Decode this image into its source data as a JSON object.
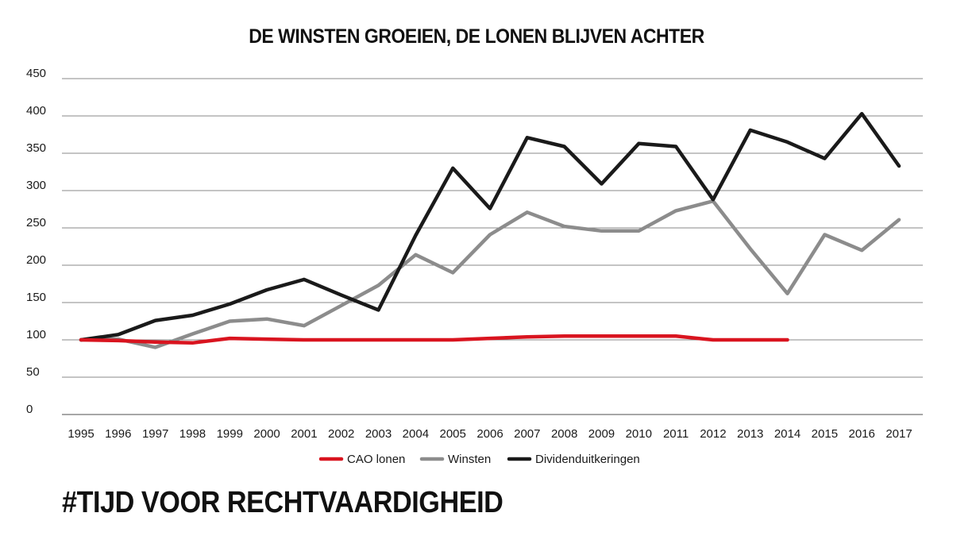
{
  "colors": {
    "cao": "#d9141f",
    "winsten": "#8c8c8c",
    "dividend": "#1a1a1a",
    "grid": "#8a8a8a"
  },
  "chart_data": {
    "type": "line",
    "title": "DE WINSTEN GROEIEN, DE LONEN BLIJVEN ACHTER",
    "xlabel": "",
    "ylabel": "",
    "ylim": [
      0,
      450
    ],
    "yticks": [
      0,
      50,
      100,
      150,
      200,
      250,
      300,
      350,
      400,
      450
    ],
    "grid": true,
    "legend_position": "bottom",
    "x": [
      "1995",
      "1996",
      "1997",
      "1998",
      "1999",
      "2000",
      "2001",
      "2002",
      "2003",
      "2004",
      "2005",
      "2006",
      "2007",
      "2008",
      "2009",
      "2010",
      "2011",
      "2012",
      "2013",
      "2014",
      "2015",
      "2016",
      "2017"
    ],
    "series": [
      {
        "name": "CAO lonen",
        "color": "#d9141f",
        "values": [
          100,
          99,
          97,
          96,
          102,
          101,
          100,
          100,
          100,
          100,
          100,
          102,
          104,
          105,
          105,
          105,
          105,
          100,
          100,
          100,
          null,
          null,
          null
        ]
      },
      {
        "name": "Winsten",
        "color": "#8c8c8c",
        "values": [
          100,
          101,
          90,
          108,
          125,
          128,
          119,
          146,
          173,
          214,
          190,
          241,
          271,
          252,
          246,
          246,
          273,
          286,
          222,
          162,
          241,
          220,
          261
        ]
      },
      {
        "name": "Dividenduitkeringen",
        "color": "#1a1a1a",
        "values": [
          100,
          107,
          126,
          133,
          148,
          167,
          181,
          160,
          140,
          240,
          330,
          276,
          371,
          359,
          309,
          363,
          359,
          288,
          381,
          365,
          343,
          403,
          333
        ]
      }
    ]
  },
  "footer": {
    "hashtag": "#TIJD VOOR RECHTVAARDIGHEID"
  }
}
